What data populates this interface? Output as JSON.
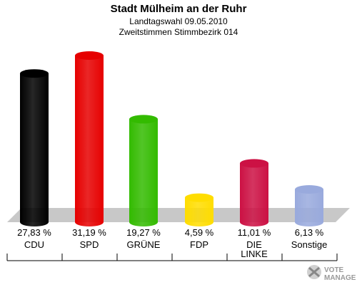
{
  "header": {
    "title": "Stadt Mülheim an der Ruhr",
    "subtitle1": "Landtagswahl 09.05.2010",
    "subtitle2": "Zweitstimmen Stimmbezirk 014"
  },
  "chart_data": {
    "type": "bar",
    "categories": [
      "CDU",
      "SPD",
      "GRÜNE",
      "FDP",
      "DIE LINKE",
      "Sonstige"
    ],
    "values": [
      27.83,
      31.19,
      19.27,
      4.59,
      11.01,
      6.13
    ],
    "value_labels": [
      "27,83 %",
      "31,19 %",
      "19,27 %",
      "4,59 %",
      "11,01 %",
      "6,13 %"
    ],
    "colors": [
      "#000000",
      "#e60000",
      "#33bb00",
      "#ffdd00",
      "#cc1144",
      "#99aadd"
    ],
    "ylim": [
      0,
      31.19
    ],
    "grid": false
  },
  "logo": {
    "line1": "VOTE",
    "line2": "MANAGER",
    "icon": "vote-manager-cross-icon"
  }
}
